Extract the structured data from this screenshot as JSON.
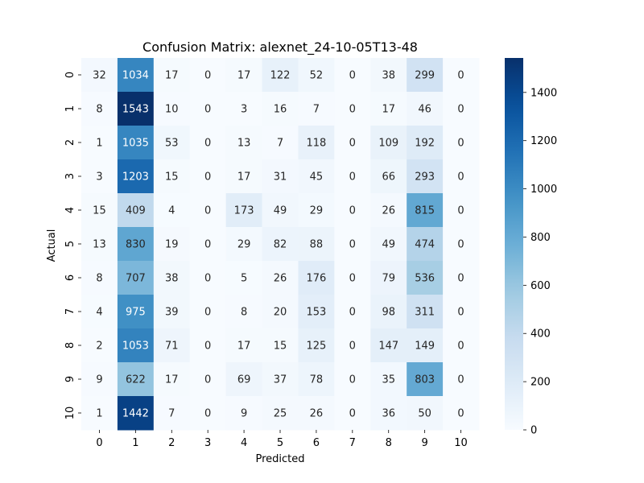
{
  "chart_data": {
    "type": "heatmap",
    "title": "Confusion Matrix: alexnet_24-10-05T13-48",
    "xlabel": "Predicted",
    "ylabel": "Actual",
    "x_categories": [
      "0",
      "1",
      "2",
      "3",
      "4",
      "5",
      "6",
      "7",
      "8",
      "9",
      "10"
    ],
    "y_categories": [
      "0",
      "1",
      "2",
      "3",
      "4",
      "5",
      "6",
      "7",
      "8",
      "9",
      "10"
    ],
    "values": [
      [
        32,
        1034,
        17,
        0,
        17,
        122,
        52,
        0,
        38,
        299,
        0
      ],
      [
        8,
        1543,
        10,
        0,
        3,
        16,
        7,
        0,
        17,
        46,
        0
      ],
      [
        1,
        1035,
        53,
        0,
        13,
        7,
        118,
        0,
        109,
        192,
        0
      ],
      [
        3,
        1203,
        15,
        0,
        17,
        31,
        45,
        0,
        66,
        293,
        0
      ],
      [
        15,
        409,
        4,
        0,
        173,
        49,
        29,
        0,
        26,
        815,
        0
      ],
      [
        13,
        830,
        19,
        0,
        29,
        82,
        88,
        0,
        49,
        474,
        0
      ],
      [
        8,
        707,
        38,
        0,
        5,
        26,
        176,
        0,
        79,
        536,
        0
      ],
      [
        4,
        975,
        39,
        0,
        8,
        20,
        153,
        0,
        98,
        311,
        0
      ],
      [
        2,
        1053,
        71,
        0,
        17,
        15,
        125,
        0,
        147,
        149,
        0
      ],
      [
        9,
        622,
        17,
        0,
        69,
        37,
        78,
        0,
        35,
        803,
        0
      ],
      [
        1,
        1442,
        7,
        0,
        9,
        25,
        26,
        0,
        36,
        50,
        0
      ]
    ],
    "colormap": "Blues",
    "colorbar": {
      "range": [
        0,
        1543
      ],
      "ticks": [
        "0",
        "200",
        "400",
        "600",
        "800",
        "1000",
        "1200",
        "1400"
      ]
    }
  }
}
